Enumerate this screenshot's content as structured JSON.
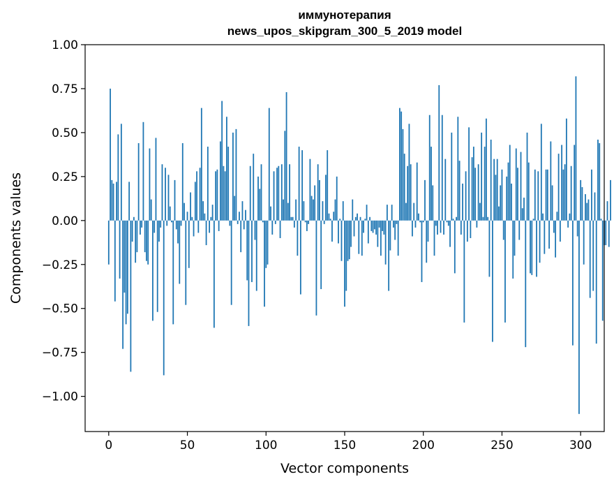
{
  "chart_data": {
    "type": "bar",
    "title": "иммунотерапия",
    "subtitle": "news_upos_skipgram_300_5_2019 model",
    "xlabel": "Vector components",
    "ylabel": "Components values",
    "xlim": [
      -15,
      315
    ],
    "ylim": [
      -1.2,
      1.0
    ],
    "xticks": [
      0,
      50,
      100,
      150,
      200,
      250,
      300
    ],
    "yticks": [
      -1.0,
      -0.75,
      -0.5,
      -0.25,
      0.0,
      0.25,
      0.5,
      0.75,
      1.0
    ],
    "ytick_labels": [
      "−1.00",
      "−0.75",
      "−0.50",
      "−0.25",
      "0.00",
      "0.25",
      "0.50",
      "0.75",
      "1.00"
    ],
    "bar_color": "#1f77b4",
    "values": [
      -0.25,
      0.75,
      0.23,
      0.21,
      -0.46,
      0.22,
      0.49,
      -0.33,
      0.55,
      -0.73,
      -0.41,
      -0.59,
      -0.53,
      0.22,
      -0.86,
      -0.12,
      0.02,
      -0.24,
      -0.18,
      0.44,
      -0.08,
      -0.04,
      0.56,
      -0.18,
      -0.23,
      -0.25,
      0.41,
      0.12,
      -0.57,
      -0.07,
      0.47,
      -0.52,
      -0.12,
      -0.04,
      0.32,
      -0.88,
      0.3,
      -0.03,
      0.26,
      0.08,
      -0.01,
      -0.59,
      0.23,
      -0.05,
      -0.13,
      -0.36,
      -0.03,
      0.44,
      0.1,
      -0.48,
      0.05,
      -0.27,
      0.16,
      0.02,
      -0.09,
      0.22,
      0.28,
      -0.07,
      0.3,
      0.64,
      0.11,
      0.04,
      -0.14,
      0.42,
      -0.07,
      0.02,
      0.09,
      -0.61,
      0.28,
      0.29,
      -0.06,
      0.45,
      0.68,
      0.31,
      0.28,
      0.59,
      0.42,
      -0.03,
      -0.48,
      0.5,
      0.14,
      0.52,
      -0.02,
      0.05,
      -0.18,
      0.11,
      -0.05,
      0.06,
      -0.34,
      -0.6,
      0.31,
      -0.35,
      0.38,
      -0.11,
      -0.4,
      0.25,
      0.18,
      0.32,
      -0.01,
      -0.49,
      -0.27,
      -0.25,
      0.64,
      0.08,
      -0.08,
      0.28,
      -0.02,
      0.3,
      0.31,
      -0.1,
      0.32,
      0.12,
      0.51,
      0.73,
      0.1,
      0.32,
      0.02,
      0.02,
      -0.04,
      0.12,
      -0.2,
      0.42,
      -0.42,
      0.4,
      0.11,
      -0.01,
      -0.06,
      -0.02,
      0.35,
      0.14,
      0.12,
      0.2,
      -0.54,
      0.32,
      0.23,
      -0.39,
      0.11,
      -0.02,
      0.26,
      0.4,
      0.04,
      0.01,
      -0.12,
      0.05,
      0.12,
      0.25,
      -0.13,
      0.01,
      -0.23,
      0.11,
      -0.49,
      -0.4,
      -0.23,
      -0.22,
      -0.15,
      0.12,
      -0.09,
      0.02,
      0.04,
      -0.19,
      0.02,
      -0.2,
      -0.07,
      0.01,
      0.09,
      -0.13,
      0.02,
      -0.06,
      -0.07,
      -0.05,
      -0.08,
      -0.15,
      -0.04,
      -0.2,
      -0.06,
      -0.08,
      -0.25,
      0.09,
      -0.4,
      -0.17,
      0.09,
      -0.04,
      -0.11,
      -0.02,
      -0.2,
      0.64,
      0.62,
      0.52,
      0.38,
      0.1,
      0.31,
      0.55,
      0.32,
      -0.09,
      0.1,
      -0.04,
      0.33,
      0.04,
      -0.01,
      -0.35,
      -0.01,
      0.23,
      -0.24,
      -0.12,
      0.6,
      0.42,
      0.2,
      -0.2,
      -0.03,
      -0.08,
      0.77,
      -0.07,
      0.6,
      -0.08,
      0.35,
      -0.01,
      -0.03,
      -0.15,
      0.5,
      0.01,
      -0.3,
      0.02,
      0.59,
      0.34,
      -0.08,
      0.21,
      -0.58,
      0.28,
      -0.12,
      0.53,
      -0.1,
      0.36,
      0.42,
      0.3,
      -0.04,
      0.32,
      0.1,
      0.5,
      0.02,
      0.42,
      0.58,
      0.02,
      -0.32,
      0.46,
      -0.69,
      0.35,
      0.26,
      0.35,
      0.08,
      0.2,
      0.29,
      -0.11,
      -0.58,
      0.25,
      0.33,
      0.43,
      0.21,
      -0.33,
      -0.2,
      0.41,
      0.3,
      -0.11,
      0.39,
      0.07,
      0.13,
      -0.72,
      0.5,
      0.33,
      -0.3,
      -0.31,
      0.01,
      0.29,
      -0.32,
      0.28,
      -0.24,
      0.55,
      0.04,
      -0.19,
      0.29,
      0.29,
      -0.16,
      0.45,
      0.2,
      -0.07,
      -0.21,
      0.05,
      0.38,
      -0.12,
      0.43,
      0.29,
      0.32,
      0.58,
      -0.04,
      0.04,
      0.31,
      -0.71,
      0.43,
      0.82,
      -0.09,
      -1.1,
      0.23,
      0.19,
      -0.25,
      0.15,
      0.1,
      0.12,
      -0.44,
      0.29,
      -0.4,
      0.16,
      -0.7,
      0.46,
      0.44,
      0.01,
      -0.57,
      -0.14,
      -0.14,
      0.11,
      -0.15,
      0.23
    ]
  }
}
